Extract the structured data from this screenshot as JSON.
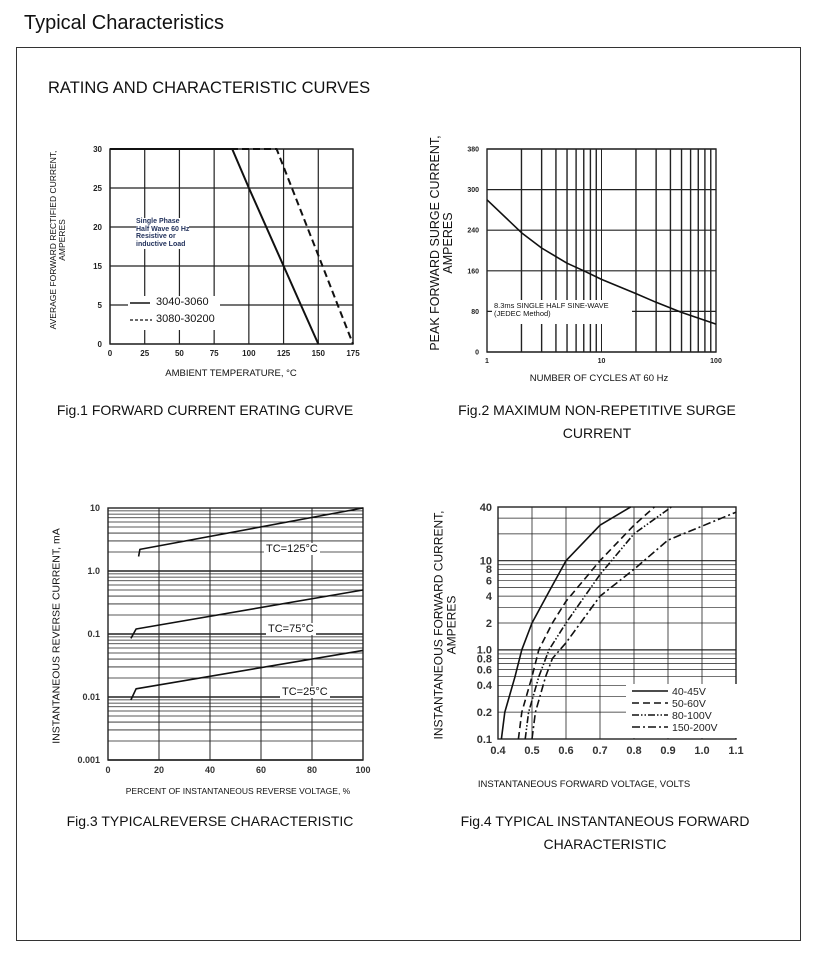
{
  "page": {
    "title": "Typical Characteristics",
    "section_title": "RATING AND CHARACTERISTIC CURVES"
  },
  "chart_data": [
    {
      "type": "line",
      "caption": "Fig.1 FORWARD CURRENT ERATING CURVE",
      "xlabel": "AMBIENT TEMPERATURE, °C",
      "ylabel": [
        "AVERAGE FORWARD RECTIFIED CURRENT,",
        "AMPERES"
      ],
      "xlim": [
        0,
        175
      ],
      "xticks": [
        0,
        25,
        50,
        75,
        100,
        125,
        150,
        175
      ],
      "yticks": [
        0,
        5,
        15,
        20,
        25,
        30
      ],
      "ylim": [
        0,
        30
      ],
      "y_scale": "evenly spaced tick labels",
      "grid": true,
      "annotation": [
        "Single Phase",
        "Half Wave 60 Hz",
        "Resistive or",
        "inductive Load"
      ],
      "legend_position": "bottom-left",
      "series": [
        {
          "name": "3040-3060",
          "style": "solid",
          "points": [
            [
              0,
              30
            ],
            [
              88,
              30
            ],
            [
              100,
              25
            ],
            [
              125,
              15
            ],
            [
              137.5,
              5
            ],
            [
              150,
              0
            ]
          ]
        },
        {
          "name": "3080-30200",
          "style": "dashed",
          "points": [
            [
              0,
              30
            ],
            [
              120,
              30
            ],
            [
              131,
              25
            ],
            [
              142,
              20
            ],
            [
              153,
              15
            ],
            [
              164,
              5
            ],
            [
              175,
              0
            ]
          ]
        }
      ]
    },
    {
      "type": "line",
      "caption": [
        "Fig.2 MAXIMUM NON-REPETITIVE SURGE",
        "CURRENT"
      ],
      "xlabel": "NUMBER OF CYCLES AT 60 Hz",
      "ylabel": [
        "PEAK  FORWARD SURGE CURRENT,",
        "AMPERES"
      ],
      "x_scale": "log",
      "xlim": [
        1,
        100
      ],
      "xticks": [
        1,
        10,
        100
      ],
      "yticks": [
        0,
        80,
        160,
        240,
        300,
        380
      ],
      "ylim": [
        0,
        380
      ],
      "y_scale": "evenly spaced tick labels",
      "grid": true,
      "annotation": [
        "8.3ms SINGLE HALF SINE-WAVE",
        "(JEDEC Method)"
      ],
      "series": [
        {
          "style": "solid",
          "points": [
            [
              1,
              285
            ],
            [
              2,
              235
            ],
            [
              3,
              205
            ],
            [
              5,
              175
            ],
            [
              7,
              160
            ],
            [
              10,
              143
            ],
            [
              20,
              115
            ],
            [
              30,
              98
            ],
            [
              50,
              78
            ],
            [
              100,
              55
            ]
          ]
        }
      ]
    },
    {
      "type": "line",
      "caption": "Fig.3 TYPICALREVERSE CHARACTERISTIC",
      "xlabel": "PERCENT OF INSTANTANEOUS REVERSE VOLTAGE, %",
      "ylabel": [
        "INSTANTANEOUS REVERSE CURRENT, mA"
      ],
      "xlim": [
        0,
        100
      ],
      "xticks": [
        "0",
        "20",
        "40",
        "60",
        "80",
        "100"
      ],
      "y_scale": "log",
      "ylim": [
        0.001,
        10
      ],
      "yticks": [
        "0.001",
        "0.01",
        "0.1",
        "1.0",
        "10"
      ],
      "grid": true,
      "series": [
        {
          "name": "TC=125°C",
          "style": "solid",
          "points": [
            [
              12,
              1.7
            ],
            [
              12.5,
              2.2
            ],
            [
              100,
              10
            ]
          ]
        },
        {
          "name": "TC=75°C",
          "style": "solid",
          "points": [
            [
              9,
              0.085
            ],
            [
              11,
              0.12
            ],
            [
              100,
              0.5
            ]
          ]
        },
        {
          "name": "TC=25°C",
          "style": "solid",
          "points": [
            [
              9,
              0.009
            ],
            [
              11,
              0.0135
            ],
            [
              100,
              0.055
            ]
          ]
        }
      ]
    },
    {
      "type": "line",
      "caption": [
        "Fig.4 TYPICAL INSTANTANEOUS FORWARD",
        "CHARACTERISTIC"
      ],
      "xlabel": "INSTANTANEOUS FORWARD VOLTAGE, VOLTS",
      "ylabel": [
        "INSTANTANEOUS FORWARD CURRENT,",
        "AMPERES"
      ],
      "xlim": [
        0.4,
        1.1
      ],
      "xticks": [
        "0.4",
        "0.5",
        "0.6",
        "0.7",
        "0.8",
        "0.9",
        "1.0",
        "1.1"
      ],
      "y_scale": "log",
      "ylim": [
        0.1,
        40
      ],
      "yticks": [
        "0.1",
        "0.2",
        "0.4",
        "0.6",
        "0.8",
        "1.0",
        "2",
        "4",
        "6",
        "8",
        "10",
        "40"
      ],
      "grid": true,
      "legend_position": "bottom-right",
      "series": [
        {
          "name": "40-45V",
          "style": "solid",
          "points": [
            [
              0.41,
              0.1
            ],
            [
              0.42,
              0.2
            ],
            [
              0.45,
              0.5
            ],
            [
              0.47,
              1
            ],
            [
              0.5,
              2
            ],
            [
              0.55,
              4.5
            ],
            [
              0.6,
              10
            ],
            [
              0.7,
              25
            ],
            [
              0.79,
              40
            ]
          ]
        },
        {
          "name": "50-60V",
          "style": "dashed",
          "points": [
            [
              0.46,
              0.1
            ],
            [
              0.47,
              0.2
            ],
            [
              0.5,
              0.5
            ],
            [
              0.52,
              1
            ],
            [
              0.56,
              2
            ],
            [
              0.6,
              3.5
            ],
            [
              0.7,
              10
            ],
            [
              0.8,
              25
            ],
            [
              0.86,
              40
            ]
          ]
        },
        {
          "name": "80-100V",
          "style": "dash-dot-dot",
          "points": [
            [
              0.48,
              0.1
            ],
            [
              0.49,
              0.2
            ],
            [
              0.52,
              0.5
            ],
            [
              0.55,
              1
            ],
            [
              0.6,
              2
            ],
            [
              0.7,
              7
            ],
            [
              0.8,
              20
            ],
            [
              0.91,
              40
            ]
          ]
        },
        {
          "name": "150-200V",
          "style": "dash-dot",
          "points": [
            [
              0.5,
              0.1
            ],
            [
              0.51,
              0.2
            ],
            [
              0.54,
              0.5
            ],
            [
              0.56,
              0.8
            ],
            [
              0.6,
              1.2
            ],
            [
              0.7,
              4
            ],
            [
              0.8,
              8
            ],
            [
              0.9,
              17
            ],
            [
              1.1,
              35
            ]
          ]
        }
      ]
    }
  ]
}
